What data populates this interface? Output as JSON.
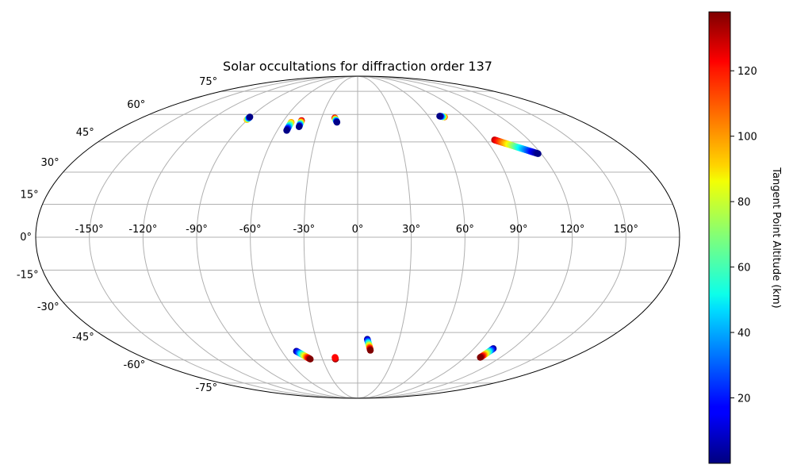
{
  "chart_data": {
    "type": "scatter",
    "projection": "mollweide",
    "title": "Solar occultations for diffraction order 137",
    "lon_ticks": [
      -150,
      -120,
      -90,
      -60,
      -30,
      0,
      30,
      60,
      90,
      120,
      150
    ],
    "lat_ticks": [
      75,
      60,
      45,
      30,
      15,
      0,
      -15,
      -30,
      -45,
      -60,
      -75
    ],
    "lon_tick_labels": [
      "-150°",
      "-120°",
      "-90°",
      "-60°",
      "-30°",
      "0°",
      "30°",
      "60°",
      "90°",
      "120°",
      "150°"
    ],
    "lat_tick_labels": [
      "75°",
      "60°",
      "45°",
      "30°",
      "15°",
      "0°",
      "-15°",
      "-30°",
      "-45°",
      "-60°",
      "-75°"
    ],
    "grid": true,
    "colorbar": {
      "label": "Tangent Point Altitude (km)",
      "min": 0,
      "max": 138,
      "ticks": [
        20,
        40,
        60,
        80,
        100,
        120
      ],
      "tick_labels": [
        "20",
        "40",
        "60",
        "80",
        "100",
        "120"
      ],
      "colormap": "jet",
      "position": "right"
    },
    "tracks": [
      {
        "lon_start": -90.5,
        "lat_start": 57.0,
        "alt_start": 100,
        "lon_end": -90.5,
        "lat_end": 58.5,
        "alt_end": 1
      },
      {
        "lon_start": -53.0,
        "lat_start": 55.5,
        "alt_start": 100,
        "lon_end": -53.0,
        "lat_end": 51.0,
        "alt_end": 1
      },
      {
        "lon_start": -45.5,
        "lat_start": 56.5,
        "alt_start": 130,
        "lon_end": -45.0,
        "lat_end": 53.0,
        "alt_end": 1
      },
      {
        "lon_start": -19.0,
        "lat_start": 58.0,
        "alt_start": 130,
        "lon_end": -16.5,
        "lat_end": 55.5,
        "alt_end": 1
      },
      {
        "lon_start": 73.0,
        "lat_start": 58.5,
        "alt_start": 110,
        "lon_end": 69.5,
        "lat_end": 59.0,
        "alt_end": 1
      },
      {
        "lon_start": 96.0,
        "lat_start": 46.0,
        "alt_start": 130,
        "lon_end": 118.0,
        "lat_end": 39.0,
        "alt_end": 1
      },
      {
        "lon_start": -48.5,
        "lat_start": -55.0,
        "alt_start": 1,
        "lon_end": -40.5,
        "lat_end": -59.5,
        "alt_end": 138
      },
      {
        "lon_start": -19.0,
        "lat_start": -59.5,
        "alt_start": 138,
        "lon_end": -19.0,
        "lat_end": -58.5,
        "alt_end": 120
      },
      {
        "lon_start": 7.0,
        "lat_start": -48.5,
        "alt_start": 1,
        "lon_end": 10.0,
        "lat_end": -54.5,
        "alt_end": 138
      },
      {
        "lon_start": 105.0,
        "lat_start": -53.5,
        "alt_start": 1,
        "lon_end": 103.0,
        "lat_end": -58.5,
        "alt_end": 138
      }
    ]
  }
}
